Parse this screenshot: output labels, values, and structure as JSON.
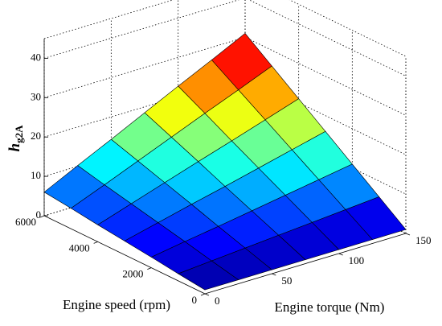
{
  "chart_data": {
    "type": "surface3d",
    "xlabel": "Engine speed (rpm)",
    "ylabel": "Engine torque (Nm)",
    "zlabel": "h",
    "zlabel_sub": "g2A",
    "speed": [
      0,
      1000,
      2000,
      3000,
      4000,
      5000,
      6000
    ],
    "torque": [
      0,
      25,
      50,
      75,
      100,
      125,
      150
    ],
    "z": [
      [
        1.0,
        1.0,
        1.0,
        1.0,
        1.0,
        1.0,
        1.0
      ],
      [
        1.8,
        2.5,
        3.2,
        3.9,
        4.6,
        5.3,
        6.0
      ],
      [
        2.7,
        4.1,
        5.4,
        6.8,
        8.2,
        9.6,
        11.0
      ],
      [
        3.5,
        5.6,
        7.7,
        9.7,
        11.8,
        13.9,
        16.0
      ],
      [
        4.3,
        7.1,
        9.9,
        12.7,
        15.4,
        18.2,
        21.0
      ],
      [
        5.2,
        8.6,
        12.1,
        15.6,
        19.1,
        22.5,
        26.0
      ],
      [
        6.0,
        10.2,
        14.3,
        18.5,
        22.7,
        26.8,
        31.0
      ]
    ],
    "xlim": [
      0,
      6000
    ],
    "xticks": [
      0,
      2000,
      4000,
      6000
    ],
    "ylim": [
      0,
      150
    ],
    "yticks": [
      0,
      50,
      100,
      150
    ],
    "zlim": [
      0,
      45
    ],
    "zticks": [
      0,
      10,
      20,
      30,
      40
    ],
    "colormap": "jet",
    "grid": true
  }
}
